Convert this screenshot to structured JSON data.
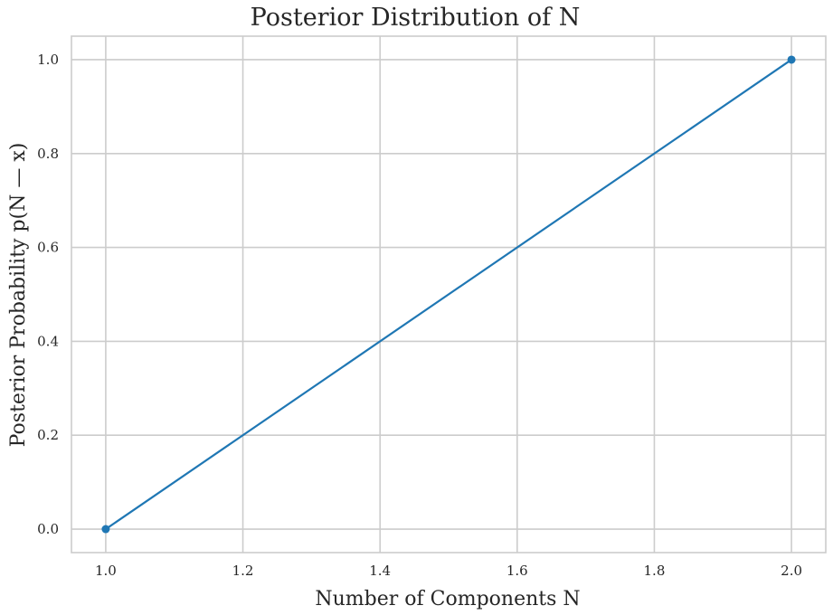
{
  "chart_data": {
    "type": "line",
    "title": "Posterior Distribution of N",
    "xlabel": "Number of Components N",
    "ylabel": "Posterior Probability p(N — x)",
    "x": [
      1.0,
      2.0
    ],
    "series": [
      {
        "values": [
          0.0,
          1.0
        ],
        "color": "#1f77b4",
        "marker": "circle"
      }
    ],
    "xlim": [
      0.95,
      2.05
    ],
    "ylim": [
      -0.05,
      1.05
    ],
    "xticks": [
      1.0,
      1.2,
      1.4,
      1.6,
      1.8,
      2.0
    ],
    "xtick_labels": [
      "1.0",
      "1.2",
      "1.4",
      "1.6",
      "1.8",
      "2.0"
    ],
    "yticks": [
      0.0,
      0.2,
      0.4,
      0.6,
      0.8,
      1.0
    ],
    "ytick_labels": [
      "0.0",
      "0.2",
      "0.4",
      "0.6",
      "0.8",
      "1.0"
    ],
    "grid": true,
    "legend": "none",
    "colors": {
      "background": "#ffffff",
      "grid": "#cccccc",
      "text": "#262626"
    }
  }
}
